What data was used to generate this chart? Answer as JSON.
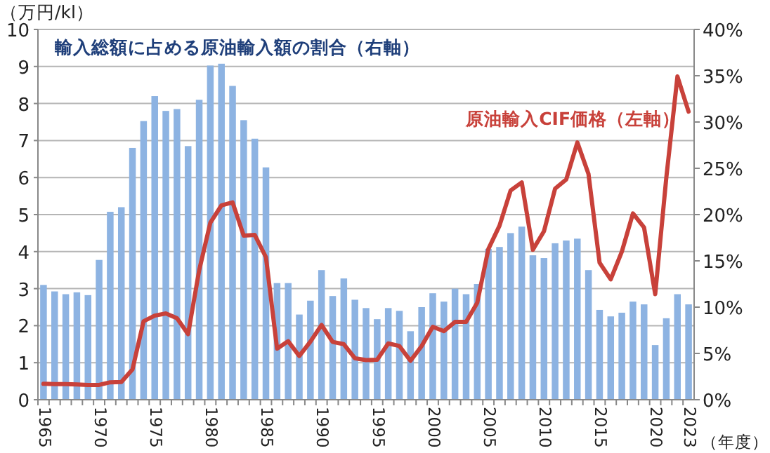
{
  "chart_data": {
    "type": "bar",
    "categories": [
      "1965",
      null,
      null,
      null,
      null,
      "1970",
      null,
      null,
      null,
      null,
      "1975",
      null,
      null,
      null,
      null,
      "1980",
      null,
      null,
      null,
      null,
      "1985",
      null,
      null,
      null,
      null,
      "1990",
      null,
      null,
      null,
      null,
      "1995",
      null,
      null,
      null,
      null,
      "2000",
      null,
      null,
      null,
      null,
      "2005",
      null,
      null,
      null,
      null,
      "2010",
      null,
      null,
      null,
      null,
      "2015",
      null,
      null,
      null,
      null,
      "2020",
      null,
      null,
      "2023"
    ],
    "series": [
      {
        "name": "輸入総額に占める原油輸入額の割合（右軸）",
        "axis": "y2",
        "color": "#8db3e2",
        "values": [
          12.4,
          11.7,
          11.4,
          11.6,
          11.3,
          15.1,
          20.3,
          20.8,
          27.2,
          30.1,
          32.8,
          31.2,
          31.4,
          27.4,
          32.4,
          36.1,
          36.3,
          33.9,
          30.2,
          28.2,
          25.1,
          12.6,
          12.6,
          9.2,
          10.7,
          14.0,
          11.2,
          13.1,
          10.8,
          9.9,
          8.7,
          9.9,
          9.6,
          7.4,
          10.0,
          11.5,
          10.6,
          12.0,
          11.4,
          12.5,
          16.3,
          16.5,
          18.0,
          18.7,
          15.6,
          15.3,
          16.9,
          17.2,
          17.4,
          14.0,
          9.7,
          9.0,
          9.4,
          10.6,
          10.3,
          5.9,
          8.8,
          11.4,
          10.3
        ]
      },
      {
        "name": "原油輸入CIF価格（左軸）",
        "type": "line",
        "color": "#c8413a",
        "values": [
          0.43,
          0.42,
          0.42,
          0.41,
          0.4,
          0.4,
          0.47,
          0.48,
          0.82,
          2.12,
          2.27,
          2.33,
          2.2,
          1.77,
          3.5,
          4.78,
          5.25,
          5.33,
          4.43,
          4.45,
          3.85,
          1.38,
          1.58,
          1.18,
          1.57,
          2.02,
          1.56,
          1.5,
          1.12,
          1.07,
          1.08,
          1.52,
          1.45,
          1.05,
          1.45,
          1.97,
          1.85,
          2.1,
          2.1,
          2.62,
          4.07,
          4.7,
          5.65,
          5.87,
          4.05,
          4.55,
          5.7,
          5.95,
          6.95,
          6.1,
          3.7,
          3.25,
          4.0,
          5.03,
          4.65,
          2.85,
          6.0,
          8.73,
          7.78
        ]
      }
    ],
    "ylabel": "（万円/kl）",
    "xlabel": "（年度）",
    "ylim": [
      0,
      10
    ],
    "yticks": [
      0,
      1,
      2,
      3,
      4,
      5,
      6,
      7,
      8,
      9,
      10
    ],
    "y2lim": [
      0,
      40
    ],
    "y2ticks": [
      {
        "value": 0,
        "label": "0%"
      },
      {
        "value": 5,
        "label": "5%"
      },
      {
        "value": 10,
        "label": "10%"
      },
      {
        "value": 15,
        "label": "15%"
      },
      {
        "value": 20,
        "label": "20%"
      },
      {
        "value": 25,
        "label": "25%"
      },
      {
        "value": 30,
        "label": "30%"
      },
      {
        "value": 35,
        "label": "35%"
      },
      {
        "value": 40,
        "label": "40%"
      }
    ],
    "grid": "y",
    "legend": false,
    "marker": "none",
    "line_style": "solid"
  }
}
